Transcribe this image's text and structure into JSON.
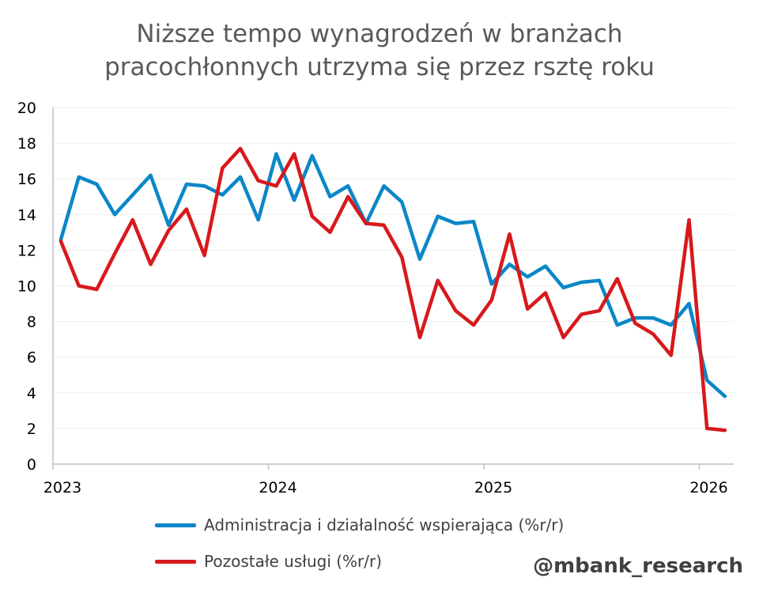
{
  "title": {
    "line1": "Niższe tempo wynagrodzeń w branżach",
    "line2": "pracochłonnych utrzyma się przez rsztę roku"
  },
  "watermark": "@mbank_research",
  "colors": {
    "series1": "#0a87c8",
    "series2": "#d7191c",
    "grid": "#eeeeee",
    "axis": "#bfbfbf"
  },
  "chart_data": {
    "type": "line",
    "title": "Niższe tempo wynagrodzeń w branżach pracochłonnych utrzyma się przez rsztę roku",
    "xlabel": "",
    "ylabel": "",
    "ylim": [
      0,
      20
    ],
    "yticks": [
      "0",
      "2",
      "4",
      "6",
      "8",
      "10",
      "12",
      "14",
      "16",
      "18",
      "20"
    ],
    "xticks": [
      "2023",
      "2024",
      "2025",
      "2026"
    ],
    "x_start": "2023-01",
    "x_step": "month",
    "grid": "horizontal",
    "legend_position": "bottom",
    "series": [
      {
        "name": "Administracja i działalność wspierająca (%r/r)",
        "color": "#0a87c8",
        "values": [
          12.6,
          16.1,
          15.7,
          14.0,
          15.1,
          16.2,
          13.4,
          15.7,
          15.6,
          15.1,
          16.1,
          13.7,
          17.4,
          14.8,
          17.3,
          15.0,
          15.6,
          13.5,
          15.6,
          14.7,
          11.5,
          13.9,
          13.5,
          13.6,
          10.1,
          11.2,
          10.5,
          11.1,
          9.9,
          10.2,
          10.3,
          7.8,
          8.2,
          8.2,
          7.8,
          9.0,
          4.7,
          3.8
        ]
      },
      {
        "name": "Pozostałe usługi (%r/r)",
        "color": "#d7191c",
        "values": [
          12.5,
          10.0,
          9.8,
          11.8,
          13.7,
          11.2,
          13.1,
          14.3,
          11.7,
          16.6,
          17.7,
          15.9,
          15.6,
          17.4,
          13.9,
          13.0,
          15.0,
          13.5,
          13.4,
          11.6,
          7.1,
          10.3,
          8.6,
          7.8,
          9.2,
          12.9,
          8.7,
          9.6,
          7.1,
          8.4,
          8.6,
          10.4,
          7.9,
          7.3,
          6.1,
          13.7,
          2.0,
          1.9
        ]
      }
    ]
  }
}
